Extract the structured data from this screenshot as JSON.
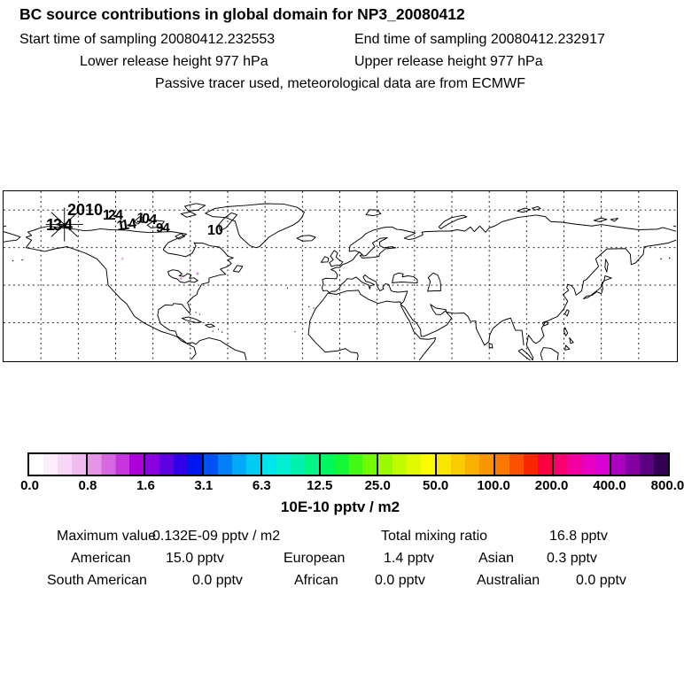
{
  "header": {
    "title": "BC  source contributions in global domain for NP3_20080412",
    "start_time": "Start time of sampling 20080412.232553",
    "end_time": "End time of sampling 20080412.232917",
    "lower_release": "Lower release height  977 hPa",
    "upper_release": "Upper release height  977 hPa",
    "tracer_note": "Passive tracer used, meteorological data are from ECMWF"
  },
  "map": {
    "labels": [
      "2010",
      "13-4",
      "12-4",
      "11-4",
      "10-4",
      "9-4",
      "10"
    ],
    "marker": "asterisk",
    "grid_interval_deg": 20
  },
  "colorbar": {
    "ticks": [
      "0.0",
      "0.8",
      "1.6",
      "3.1",
      "6.3",
      "12.5",
      "25.0",
      "50.0",
      "100.0",
      "200.0",
      "400.0",
      "800.0"
    ],
    "units": "10E-10 pptv / m2",
    "segments": [
      [
        "#ffffff",
        "#fdecfc",
        "#f8d6f7",
        "#f0bbf0"
      ],
      [
        "#e495e8",
        "#d668e2",
        "#c636de",
        "#ac00da"
      ],
      [
        "#8a00e0",
        "#5e00e0",
        "#3200e6",
        "#0018ee"
      ],
      [
        "#0050f4",
        "#0080f8",
        "#00aaf8",
        "#00ccf4"
      ],
      [
        "#00e4ee",
        "#00eed2",
        "#00f2ae",
        "#00f486"
      ],
      [
        "#00f65e",
        "#12f836",
        "#42fa16",
        "#72fa00"
      ],
      [
        "#9cfa00",
        "#c2fa00",
        "#e2fa00",
        "#fafa00"
      ],
      [
        "#fae600",
        "#facc00",
        "#fab000",
        "#fa9400"
      ],
      [
        "#fa7800",
        "#fa5000",
        "#fa2600",
        "#fa0040"
      ],
      [
        "#f8006e",
        "#f400a0",
        "#ea00c2",
        "#d800d2"
      ],
      [
        "#ac00c0",
        "#8400a4",
        "#5c0084",
        "#340054"
      ]
    ]
  },
  "stats": {
    "max_label": "Maximum value",
    "max_value": "0.132E-09 pptv / m2",
    "total_label": "Total mixing ratio",
    "total_value": "16.8 pptv",
    "rows": [
      {
        "label": "American",
        "value": "15.0 pptv"
      },
      {
        "label": "European",
        "value": "1.4 pptv"
      },
      {
        "label": "Asian",
        "value": "0.3 pptv"
      },
      {
        "label": "South American",
        "value": "0.0 pptv"
      },
      {
        "label": "African",
        "value": "0.0 pptv"
      },
      {
        "label": "Australian",
        "value": "0.0 pptv"
      }
    ]
  },
  "chart_data": {
    "type": "heatmap",
    "subtype": "geographic source-contribution map",
    "projection": "equirectangular",
    "lon_range": [
      -180,
      180
    ],
    "lat_range": [
      0,
      90
    ],
    "grid_interval_deg": 20,
    "title": "BC  source contributions in global domain for NP3_20080412",
    "sampling": {
      "start": "20080412.232553",
      "end": "20080412.232917"
    },
    "release_height_hPa": {
      "lower": 977,
      "upper": 977
    },
    "meteorology": "ECMWF, passive tracer",
    "receptor": {
      "name": "NP3_20080412",
      "marker": "asterisk",
      "approx_lon": -147,
      "approx_lat": 72
    },
    "trajectory_labels": [
      "2010",
      "13-4",
      "12-4",
      "11-4",
      "10-4",
      "9-4",
      "10"
    ],
    "colorbar": {
      "scale": "log2",
      "tick_values": [
        0.0,
        0.8,
        1.6,
        3.1,
        6.3,
        12.5,
        25.0,
        50.0,
        100.0,
        200.0,
        400.0,
        800.0
      ],
      "units": "10E-10 pptv / m2",
      "legend_position": "bottom"
    },
    "maximum_value": "0.132E-09 pptv / m2",
    "total_mixing_ratio_pptv": 16.8,
    "contributions_pptv": [
      {
        "region": "American",
        "value": 15.0
      },
      {
        "region": "European",
        "value": 1.4
      },
      {
        "region": "Asian",
        "value": 0.3
      },
      {
        "region": "South American",
        "value": 0.0
      },
      {
        "region": "African",
        "value": 0.0
      },
      {
        "region": "Australian",
        "value": 0.0
      }
    ]
  }
}
